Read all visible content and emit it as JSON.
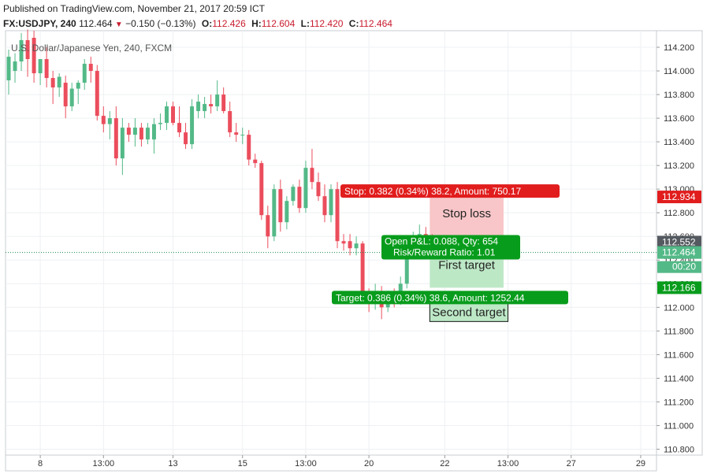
{
  "header": {
    "published": "Published on TradingView.com, November 21, 2017 20:59 ICT",
    "symbol": "FX:USDJPY, 240",
    "last": "112.464",
    "change": "−0.150 (−0.13%)",
    "open_label": "O:",
    "open": "112.426",
    "high_label": "H:",
    "high": "112.604",
    "low_label": "L:",
    "low": "112.420",
    "close_label": "C:",
    "close": "112.464"
  },
  "chart_data": {
    "type": "candlestick",
    "title": "U.S. Dollar/Japanese Yen, 240, FXCM",
    "ylim": [
      110.75,
      114.34
    ],
    "y_ticks": [
      "114.200",
      "114.000",
      "113.800",
      "113.600",
      "113.400",
      "113.200",
      "113.000",
      "112.800",
      "112.600",
      "112.400",
      "112.200",
      "112.000",
      "111.800",
      "111.600",
      "111.400",
      "111.200",
      "111.000",
      "110.800"
    ],
    "x_ticks": [
      {
        "label": "8",
        "bar": 5
      },
      {
        "label": "13:00",
        "bar": 15
      },
      {
        "label": "13",
        "bar": 26
      },
      {
        "label": "15",
        "bar": 37
      },
      {
        "label": "13:00",
        "bar": 47
      },
      {
        "label": "20",
        "bar": 57
      },
      {
        "label": "22",
        "bar": 69
      },
      {
        "label": "13:00",
        "bar": 79
      },
      {
        "label": "27",
        "bar": 89
      },
      {
        "label": "29",
        "bar": 100
      }
    ],
    "bars_total": 103,
    "candles": [
      {
        "o": 113.92,
        "h": 114.18,
        "l": 113.8,
        "c": 114.12
      },
      {
        "o": 114.0,
        "h": 114.15,
        "l": 113.9,
        "c": 114.08
      },
      {
        "o": 114.08,
        "h": 114.32,
        "l": 114.0,
        "c": 114.26
      },
      {
        "o": 114.26,
        "h": 114.35,
        "l": 113.95,
        "c": 114.1
      },
      {
        "o": 114.28,
        "h": 114.34,
        "l": 113.9,
        "c": 113.98
      },
      {
        "o": 113.98,
        "h": 114.1,
        "l": 113.88,
        "c": 114.1
      },
      {
        "o": 114.1,
        "h": 114.2,
        "l": 113.86,
        "c": 113.94
      },
      {
        "o": 113.94,
        "h": 114.0,
        "l": 113.72,
        "c": 113.86
      },
      {
        "o": 113.86,
        "h": 113.98,
        "l": 113.78,
        "c": 113.95
      },
      {
        "o": 113.9,
        "h": 113.96,
        "l": 113.6,
        "c": 113.7
      },
      {
        "o": 113.7,
        "h": 113.9,
        "l": 113.66,
        "c": 113.85
      },
      {
        "o": 113.85,
        "h": 113.92,
        "l": 113.72,
        "c": 113.9
      },
      {
        "o": 113.9,
        "h": 114.1,
        "l": 113.84,
        "c": 114.06
      },
      {
        "o": 114.06,
        "h": 114.12,
        "l": 113.9,
        "c": 114.0
      },
      {
        "o": 114.0,
        "h": 114.05,
        "l": 113.58,
        "c": 113.62
      },
      {
        "o": 113.62,
        "h": 113.7,
        "l": 113.48,
        "c": 113.55
      },
      {
        "o": 113.55,
        "h": 113.66,
        "l": 113.42,
        "c": 113.6
      },
      {
        "o": 113.6,
        "h": 113.7,
        "l": 113.2,
        "c": 113.26
      },
      {
        "o": 113.26,
        "h": 113.6,
        "l": 113.12,
        "c": 113.52
      },
      {
        "o": 113.52,
        "h": 113.56,
        "l": 113.4,
        "c": 113.46
      },
      {
        "o": 113.46,
        "h": 113.6,
        "l": 113.36,
        "c": 113.52
      },
      {
        "o": 113.52,
        "h": 113.56,
        "l": 113.36,
        "c": 113.42
      },
      {
        "o": 113.42,
        "h": 113.56,
        "l": 113.38,
        "c": 113.52
      },
      {
        "o": 113.42,
        "h": 113.6,
        "l": 113.3,
        "c": 113.55
      },
      {
        "o": 113.55,
        "h": 113.64,
        "l": 113.5,
        "c": 113.56
      },
      {
        "o": 113.56,
        "h": 113.74,
        "l": 113.5,
        "c": 113.7
      },
      {
        "o": 113.7,
        "h": 113.74,
        "l": 113.54,
        "c": 113.56
      },
      {
        "o": 113.56,
        "h": 113.7,
        "l": 113.44,
        "c": 113.48
      },
      {
        "o": 113.48,
        "h": 113.56,
        "l": 113.34,
        "c": 113.38
      },
      {
        "o": 113.38,
        "h": 113.76,
        "l": 113.34,
        "c": 113.7
      },
      {
        "o": 113.66,
        "h": 113.8,
        "l": 113.6,
        "c": 113.74
      },
      {
        "o": 113.66,
        "h": 113.78,
        "l": 113.6,
        "c": 113.72
      },
      {
        "o": 113.72,
        "h": 113.8,
        "l": 113.64,
        "c": 113.7
      },
      {
        "o": 113.7,
        "h": 113.92,
        "l": 113.66,
        "c": 113.8
      },
      {
        "o": 113.8,
        "h": 113.86,
        "l": 113.64,
        "c": 113.66
      },
      {
        "o": 113.66,
        "h": 113.74,
        "l": 113.44,
        "c": 113.48
      },
      {
        "o": 113.48,
        "h": 113.56,
        "l": 113.4,
        "c": 113.46
      },
      {
        "o": 113.46,
        "h": 113.52,
        "l": 113.38,
        "c": 113.46
      },
      {
        "o": 113.46,
        "h": 113.5,
        "l": 113.2,
        "c": 113.25
      },
      {
        "o": 113.25,
        "h": 113.3,
        "l": 113.18,
        "c": 113.22
      },
      {
        "o": 113.22,
        "h": 113.24,
        "l": 112.74,
        "c": 112.78
      },
      {
        "o": 112.78,
        "h": 112.86,
        "l": 112.5,
        "c": 112.6
      },
      {
        "o": 112.6,
        "h": 113.04,
        "l": 112.56,
        "c": 113.0
      },
      {
        "o": 113.0,
        "h": 113.08,
        "l": 112.64,
        "c": 112.72
      },
      {
        "o": 112.72,
        "h": 112.94,
        "l": 112.66,
        "c": 112.9
      },
      {
        "o": 112.9,
        "h": 113.04,
        "l": 112.86,
        "c": 113.02
      },
      {
        "o": 113.02,
        "h": 113.08,
        "l": 112.8,
        "c": 112.84
      },
      {
        "o": 112.84,
        "h": 113.24,
        "l": 112.8,
        "c": 113.18
      },
      {
        "o": 113.18,
        "h": 113.34,
        "l": 113.0,
        "c": 113.06
      },
      {
        "o": 113.06,
        "h": 113.14,
        "l": 112.9,
        "c": 112.94
      },
      {
        "o": 112.94,
        "h": 113.04,
        "l": 112.72,
        "c": 112.78
      },
      {
        "o": 112.78,
        "h": 113.04,
        "l": 112.72,
        "c": 113.0
      },
      {
        "o": 113.0,
        "h": 113.06,
        "l": 112.5,
        "c": 112.56
      },
      {
        "o": 112.56,
        "h": 112.62,
        "l": 112.48,
        "c": 112.54
      },
      {
        "o": 112.56,
        "h": 112.62,
        "l": 112.44,
        "c": 112.5
      },
      {
        "o": 112.5,
        "h": 112.6,
        "l": 112.44,
        "c": 112.54
      },
      {
        "o": 112.54,
        "h": 112.56,
        "l": 112.06,
        "c": 112.1
      },
      {
        "o": 112.1,
        "h": 112.16,
        "l": 111.96,
        "c": 112.04
      },
      {
        "o": 112.04,
        "h": 112.2,
        "l": 111.98,
        "c": 112.12
      },
      {
        "o": 112.12,
        "h": 112.18,
        "l": 111.9,
        "c": 112.0
      },
      {
        "o": 112.0,
        "h": 112.14,
        "l": 111.96,
        "c": 112.1
      },
      {
        "o": 112.1,
        "h": 112.16,
        "l": 112.0,
        "c": 112.06
      },
      {
        "o": 112.06,
        "h": 112.26,
        "l": 112.02,
        "c": 112.2
      },
      {
        "o": 112.2,
        "h": 112.6,
        "l": 112.16,
        "c": 112.56
      },
      {
        "o": 112.56,
        "h": 112.64,
        "l": 112.5,
        "c": 112.58
      },
      {
        "o": 112.58,
        "h": 112.7,
        "l": 112.5,
        "c": 112.62
      },
      {
        "o": 112.62,
        "h": 112.68,
        "l": 112.5,
        "c": 112.56
      },
      {
        "o": 112.56,
        "h": 112.62,
        "l": 112.42,
        "c": 112.46
      }
    ]
  },
  "price_scale": {
    "stop_level": "112.934",
    "entry_level": "112.552",
    "current": "112.464",
    "countdown": "00:20",
    "target_level": "112.166"
  },
  "position": {
    "stop_label": "Stop: 0.382 (0.34%) 38.2, Amount: 750.17",
    "open_pl_label": "Open P&L: 0.088, Qty: 654",
    "risk_reward_label": "Risk/Reward Ratio: 1.01",
    "target_label": "Target: 0.386 (0.34%) 38.6, Amount: 1252.44",
    "stop_loss_text": "Stop loss",
    "first_target_text": "First target",
    "second_target_text": "Second target",
    "entry": 112.552,
    "stop": 112.934,
    "target": 112.166
  },
  "colors": {
    "up": "#53b987",
    "down": "#eb4d5c",
    "stop_zone": "#f8c6c8",
    "target_zone": "#bde8c6",
    "badge_red": "#e11d1d",
    "badge_green": "#089c1c",
    "grid": "#eef0f3"
  }
}
